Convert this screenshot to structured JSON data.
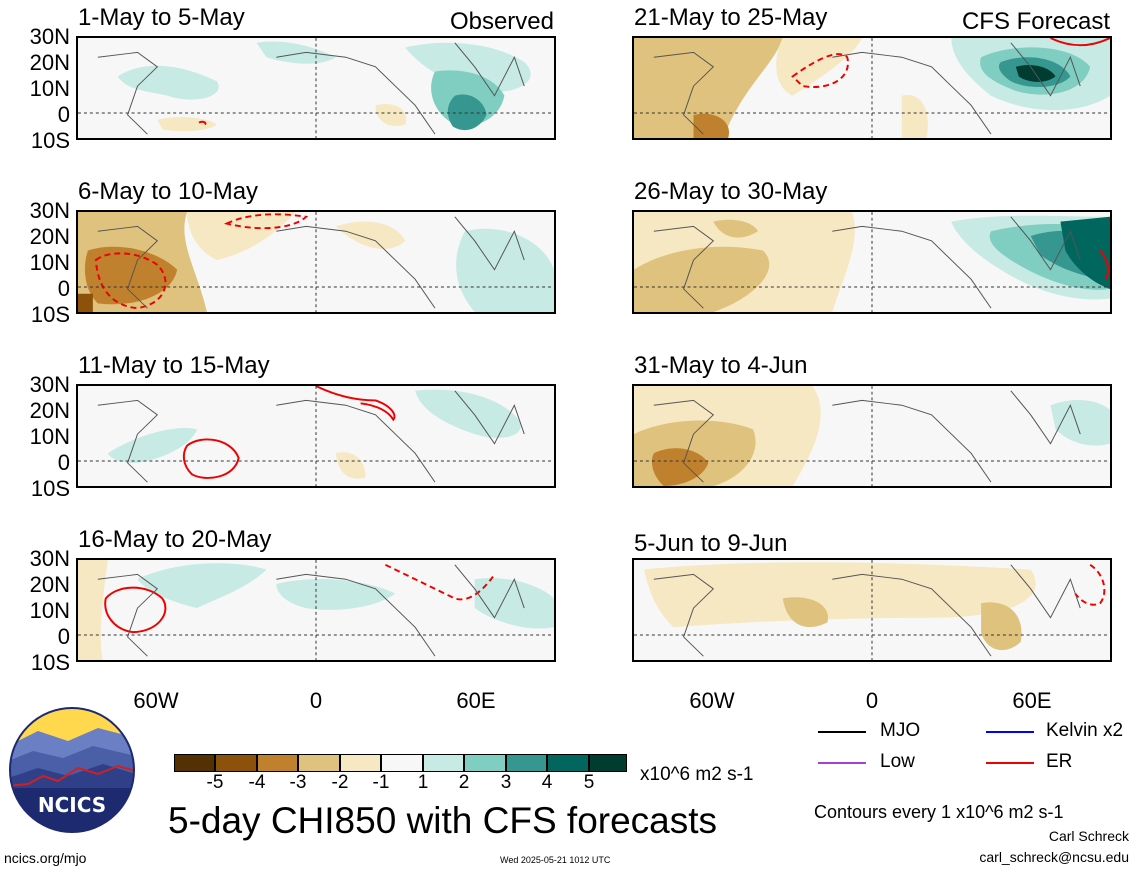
{
  "chart_data": [
    {
      "type": "heatmap",
      "title": "1-May to 5-May",
      "tag": "Observed",
      "column": "observed"
    },
    {
      "type": "heatmap",
      "title": "6-May to 10-May",
      "tag": "",
      "column": "observed"
    },
    {
      "type": "heatmap",
      "title": "11-May to 15-May",
      "tag": "",
      "column": "observed"
    },
    {
      "type": "heatmap",
      "title": "16-May to 20-May",
      "tag": "",
      "column": "observed"
    },
    {
      "type": "heatmap",
      "title": "21-May to 25-May",
      "tag": "CFS Forecast",
      "column": "forecast"
    },
    {
      "type": "heatmap",
      "title": "26-May to 30-May",
      "tag": "",
      "column": "forecast"
    },
    {
      "type": "heatmap",
      "title": "31-May to 4-Jun",
      "tag": "",
      "column": "forecast"
    },
    {
      "type": "heatmap",
      "title": "5-Jun to 9-Jun",
      "tag": "",
      "column": "forecast"
    }
  ],
  "axes": {
    "lat_ticks": [
      "30N",
      "20N",
      "10N",
      "0",
      "10S"
    ],
    "lat_values": [
      30,
      20,
      10,
      0,
      -10
    ],
    "lon_ticks": [
      "60W",
      "0",
      "60E"
    ],
    "lon_values": [
      -60,
      0,
      60
    ],
    "lon_range": [
      -90,
      90
    ],
    "lat_range": [
      -10,
      30
    ]
  },
  "colorbar": {
    "ticks": [
      "-5",
      "-4",
      "-3",
      "-2",
      "-1",
      "1",
      "2",
      "3",
      "4",
      "5"
    ],
    "colors": [
      "#543005",
      "#8c510a",
      "#bf812d",
      "#dfc27d",
      "#f6e8c3",
      "#f7f7f7",
      "#c7eae5",
      "#80cdc1",
      "#35978f",
      "#01665e",
      "#003c30"
    ],
    "unit": "x10^6 m2 s-1"
  },
  "legend": [
    {
      "label": "MJO",
      "color": "#000000"
    },
    {
      "label": "Kelvin x2",
      "color": "#0000ff"
    },
    {
      "label": "Low",
      "color": "#a040e0"
    },
    {
      "label": "ER",
      "color": "#ee0000"
    }
  ],
  "title": "5-day CHI850 with CFS forecasts",
  "contour_note": "Contours every 1 x10^6 m2 s-1",
  "author": "Carl Schreck",
  "email": "carl_schreck@ncsu.edu",
  "site": "ncics.org/mjo",
  "timestamp": "Wed 2025-05-21 1012 UTC",
  "logo_text": "NCICS"
}
